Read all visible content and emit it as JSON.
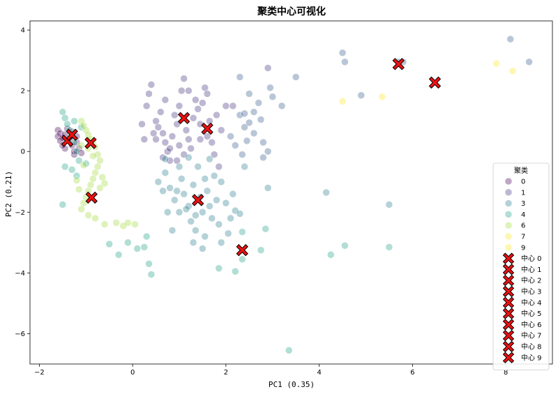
{
  "chart_data": {
    "type": "scatter",
    "title": "聚类中心可视化",
    "xlabel": "PC1 (0.35)",
    "ylabel": "PC2 (0.21)",
    "xlim": [
      -2.2,
      9.0
    ],
    "ylim": [
      -7.0,
      4.3
    ],
    "xticks": [
      -2,
      0,
      2,
      4,
      6,
      8
    ],
    "yticks": [
      -6,
      -4,
      -2,
      0,
      2,
      4
    ],
    "grid": false,
    "legend": {
      "title": "聚类",
      "placement": "right",
      "point_entries": [
        "0",
        "1",
        "3",
        "4",
        "6",
        "7",
        "9"
      ],
      "center_entries": [
        "中心 0",
        "中心 1",
        "中心 2",
        "中心 3",
        "中心 4",
        "中心 5",
        "中心 6",
        "中心 7",
        "中心 8",
        "中心 9"
      ]
    },
    "point_colors": {
      "0": "#440154",
      "1": "#46327e",
      "2": "#365c8d",
      "3": "#277f8e",
      "4": "#1fa187",
      "5": "#4ac16d",
      "6": "#a0da39",
      "7": "#fde725",
      "9": "#fde725"
    },
    "series": [
      {
        "name": "0",
        "color": "#440154",
        "points": [
          [
            -1.6,
            0.7
          ],
          [
            -1.55,
            0.6
          ],
          [
            -1.6,
            0.5
          ],
          [
            -1.5,
            0.45
          ],
          [
            -1.55,
            0.35
          ],
          [
            -1.45,
            0.55
          ],
          [
            -1.4,
            0.75
          ],
          [
            -1.35,
            0.4
          ],
          [
            -1.3,
            0.2
          ],
          [
            -1.45,
            0.1
          ],
          [
            -1.25,
            -0.1
          ],
          [
            -1.2,
            0.3
          ],
          [
            -1.15,
            0.1
          ],
          [
            -1.3,
            0.65
          ],
          [
            -1.5,
            0.2
          ],
          [
            -1.2,
            0.5
          ],
          [
            -1.1,
            -0.05
          ],
          [
            -1.25,
            0.0
          ]
        ]
      },
      {
        "name": "1",
        "color": "#46327e",
        "points": [
          [
            0.3,
            1.5
          ],
          [
            0.35,
            1.9
          ],
          [
            0.4,
            2.2
          ],
          [
            0.5,
            1.0
          ],
          [
            0.55,
            0.8
          ],
          [
            0.6,
            1.3
          ],
          [
            0.65,
            0.6
          ],
          [
            0.7,
            0.3
          ],
          [
            0.75,
            0.0
          ],
          [
            0.8,
            -0.3
          ],
          [
            0.9,
            1.2
          ],
          [
            0.95,
            0.9
          ],
          [
            1.0,
            1.5
          ],
          [
            1.05,
            2.0
          ],
          [
            1.1,
            2.4
          ],
          [
            1.15,
            0.7
          ],
          [
            1.2,
            0.4
          ],
          [
            1.25,
            0.1
          ],
          [
            1.3,
            1.1
          ],
          [
            1.4,
            1.4
          ],
          [
            1.45,
            0.9
          ],
          [
            1.5,
            1.6
          ],
          [
            1.55,
            2.1
          ],
          [
            1.6,
            0.5
          ],
          [
            1.65,
            1.0
          ],
          [
            1.7,
            0.3
          ],
          [
            1.75,
            -0.1
          ],
          [
            1.8,
            1.2
          ],
          [
            1.9,
            0.7
          ],
          [
            0.85,
            0.5
          ],
          [
            0.7,
            1.7
          ],
          [
            0.5,
            0.4
          ],
          [
            1.0,
            0.2
          ],
          [
            1.2,
            2.0
          ],
          [
            1.35,
            1.7
          ],
          [
            2.0,
            1.5
          ],
          [
            2.15,
            1.5
          ],
          [
            2.9,
            2.75
          ],
          [
            0.2,
            0.9
          ],
          [
            0.45,
            0.6
          ],
          [
            1.85,
            -0.5
          ],
          [
            1.6,
            1.9
          ],
          [
            0.25,
            0.4
          ],
          [
            1.1,
            -0.1
          ],
          [
            0.8,
            0.1
          ],
          [
            0.65,
            -0.2
          ],
          [
            1.45,
            0.4
          ],
          [
            0.95,
            -0.3
          ]
        ]
      },
      {
        "name": "3",
        "color": "#365c8d",
        "points": [
          [
            2.1,
            0.5
          ],
          [
            2.3,
            1.2
          ],
          [
            2.4,
            0.8
          ],
          [
            2.5,
            1.9
          ],
          [
            2.6,
            1.3
          ],
          [
            2.7,
            1.6
          ],
          [
            2.8,
            0.3
          ],
          [
            2.9,
            0.0
          ],
          [
            2.95,
            2.1
          ],
          [
            3.2,
            1.5
          ],
          [
            3.5,
            2.45
          ],
          [
            2.5,
            0.95
          ],
          [
            4.5,
            3.25
          ],
          [
            4.55,
            2.95
          ],
          [
            4.9,
            1.85
          ],
          [
            5.7,
            2.95
          ],
          [
            5.8,
            2.95
          ],
          [
            8.1,
            3.7
          ],
          [
            8.5,
            2.95
          ],
          [
            2.3,
            2.45
          ],
          [
            2.4,
            1.25
          ],
          [
            2.8,
            -0.2
          ],
          [
            2.2,
            0.2
          ],
          [
            2.6,
            0.6
          ],
          [
            2.35,
            -0.1
          ],
          [
            3.0,
            1.8
          ],
          [
            2.75,
            1.05
          ],
          [
            2.45,
            0.35
          ]
        ]
      },
      {
        "name": "4",
        "color": "#277f8e",
        "points": [
          [
            0.7,
            -0.7
          ],
          [
            0.8,
            -1.2
          ],
          [
            0.9,
            -1.6
          ],
          [
            1.0,
            -2.0
          ],
          [
            1.05,
            -0.9
          ],
          [
            1.1,
            -1.4
          ],
          [
            1.2,
            -1.8
          ],
          [
            1.25,
            -2.3
          ],
          [
            1.3,
            -1.1
          ],
          [
            1.35,
            -2.6
          ],
          [
            1.4,
            -0.5
          ],
          [
            1.45,
            -1.5
          ],
          [
            1.5,
            -2.0
          ],
          [
            1.55,
            -2.8
          ],
          [
            1.6,
            -1.3
          ],
          [
            1.65,
            -1.8
          ],
          [
            1.7,
            -2.2
          ],
          [
            1.75,
            -0.8
          ],
          [
            1.8,
            -1.6
          ],
          [
            1.85,
            -2.4
          ],
          [
            1.9,
            -3.0
          ],
          [
            2.0,
            -1.7
          ],
          [
            2.1,
            -2.2
          ],
          [
            2.2,
            -1.95
          ],
          [
            2.3,
            -2.05
          ],
          [
            0.75,
            -2.0
          ],
          [
            0.85,
            -2.6
          ],
          [
            0.95,
            -1.3
          ],
          [
            1.15,
            -1.9
          ],
          [
            0.65,
            -1.3
          ],
          [
            1.0,
            -0.5
          ],
          [
            1.3,
            -3.0
          ],
          [
            1.5,
            -3.2
          ],
          [
            2.05,
            -2.7
          ],
          [
            2.4,
            -0.5
          ],
          [
            2.9,
            -1.2
          ],
          [
            4.15,
            -1.35
          ],
          [
            5.5,
            -1.75
          ],
          [
            1.2,
            -0.2
          ],
          [
            1.55,
            -0.9
          ],
          [
            0.55,
            -1.0
          ],
          [
            1.65,
            -0.25
          ],
          [
            0.7,
            -0.25
          ],
          [
            1.9,
            -1.0
          ],
          [
            2.15,
            -1.4
          ],
          [
            1.35,
            -2.1
          ]
        ]
      },
      {
        "name": "6",
        "color": "#1fa187",
        "points": [
          [
            -1.5,
            1.3
          ],
          [
            -1.45,
            1.1
          ],
          [
            -1.4,
            0.9
          ],
          [
            -1.35,
            0.7
          ],
          [
            -1.3,
            0.5
          ],
          [
            -1.25,
            0.3
          ],
          [
            -1.2,
            0.0
          ],
          [
            -1.15,
            -0.3
          ],
          [
            -1.3,
            -0.6
          ],
          [
            -1.45,
            -0.5
          ],
          [
            -1.2,
            -0.8
          ],
          [
            -1.0,
            -0.4
          ],
          [
            -1.1,
            0.8
          ],
          [
            -1.25,
            1.0
          ],
          [
            -0.5,
            -3.05
          ],
          [
            -0.3,
            -3.4
          ],
          [
            -0.1,
            -3.0
          ],
          [
            0.1,
            -3.2
          ],
          [
            0.25,
            -3.15
          ],
          [
            0.3,
            -2.8
          ],
          [
            0.35,
            -3.7
          ],
          [
            0.4,
            -4.05
          ],
          [
            1.85,
            -3.85
          ],
          [
            2.2,
            -3.95
          ],
          [
            2.35,
            -3.55
          ],
          [
            2.35,
            -2.65
          ],
          [
            2.75,
            -3.25
          ],
          [
            2.85,
            -2.55
          ],
          [
            3.35,
            -6.55
          ],
          [
            4.25,
            -3.4
          ],
          [
            4.55,
            -3.1
          ],
          [
            5.5,
            -3.15
          ],
          [
            -1.5,
            -1.75
          ]
        ]
      },
      {
        "name": "7",
        "color": "#a0da39",
        "points": [
          [
            -1.1,
            1.0
          ],
          [
            -1.05,
            0.85
          ],
          [
            -1.0,
            0.7
          ],
          [
            -0.95,
            0.55
          ],
          [
            -0.9,
            0.4
          ],
          [
            -0.85,
            0.3
          ],
          [
            -0.8,
            0.15
          ],
          [
            -0.75,
            -0.1
          ],
          [
            -0.7,
            -0.3
          ],
          [
            -0.75,
            -0.5
          ],
          [
            -0.8,
            -0.7
          ],
          [
            -0.85,
            -0.9
          ],
          [
            -0.9,
            -1.1
          ],
          [
            -0.95,
            -1.3
          ],
          [
            -1.0,
            -1.5
          ],
          [
            -1.05,
            -1.7
          ],
          [
            -1.1,
            -1.9
          ],
          [
            -0.95,
            -2.1
          ],
          [
            -0.8,
            -2.2
          ],
          [
            -0.7,
            -1.2
          ],
          [
            -0.65,
            -0.85
          ],
          [
            -0.6,
            -1.05
          ],
          [
            -1.15,
            -1.25
          ],
          [
            -1.2,
            -0.95
          ],
          [
            -1.05,
            -0.45
          ],
          [
            -0.6,
            -2.4
          ],
          [
            -0.35,
            -2.35
          ],
          [
            -0.2,
            -2.45
          ],
          [
            0.05,
            -2.4
          ],
          [
            -0.1,
            -2.35
          ],
          [
            -0.95,
            0.1
          ],
          [
            -1.1,
            0.2
          ],
          [
            -0.85,
            -0.15
          ]
        ]
      },
      {
        "name": "9",
        "color": "#fde725",
        "points": [
          [
            7.8,
            2.9
          ],
          [
            8.15,
            2.65
          ],
          [
            5.35,
            1.8
          ],
          [
            4.5,
            1.65
          ]
        ]
      }
    ],
    "centers": [
      {
        "name": "中心 0",
        "x": -1.4,
        "y": 0.35
      },
      {
        "name": "中心 1",
        "x": 1.1,
        "y": 1.1
      },
      {
        "name": "中心 2",
        "x": -1.3,
        "y": 0.55
      },
      {
        "name": "中心 3",
        "x": 1.6,
        "y": 0.75
      },
      {
        "name": "中心 4",
        "x": 1.4,
        "y": -1.6
      },
      {
        "name": "中心 5",
        "x": -0.9,
        "y": 0.28
      },
      {
        "name": "中心 6",
        "x": 2.35,
        "y": -3.25
      },
      {
        "name": "中心 7",
        "x": -0.88,
        "y": -1.52
      },
      {
        "name": "中心 8",
        "x": 5.7,
        "y": 2.88
      },
      {
        "name": "中心 9",
        "x": 6.48,
        "y": 2.27
      }
    ]
  }
}
